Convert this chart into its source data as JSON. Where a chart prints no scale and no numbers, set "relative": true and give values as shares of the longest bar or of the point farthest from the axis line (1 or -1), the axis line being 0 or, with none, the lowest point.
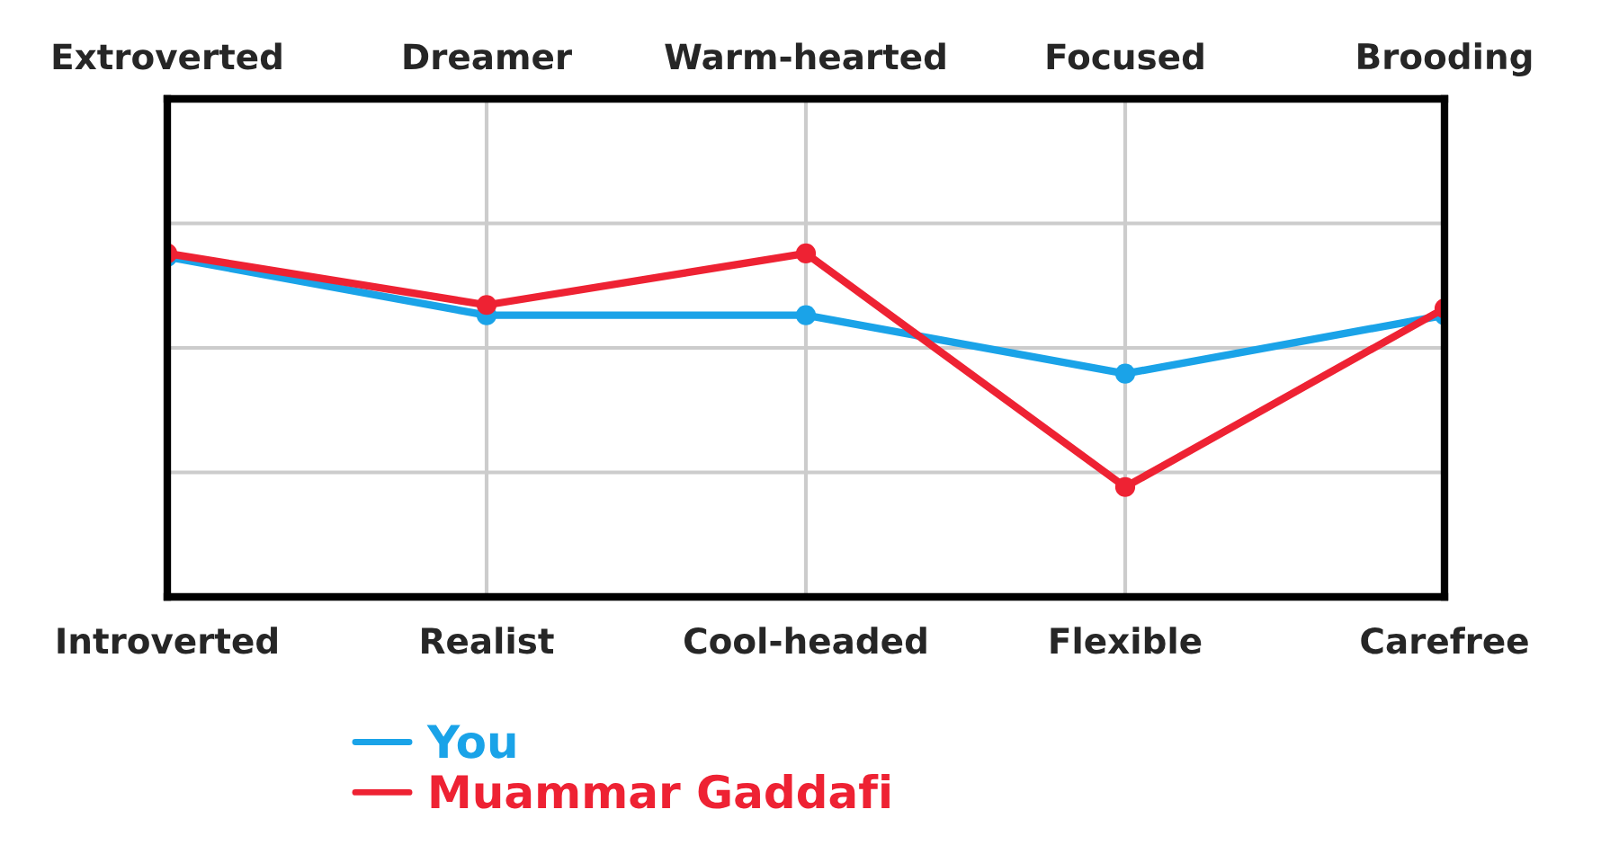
{
  "chart_data": {
    "type": "line",
    "relative": true,
    "categories": [
      "Introverted",
      "Realist",
      "Cool-headed",
      "Flexible",
      "Carefree"
    ],
    "annotations": [
      "Extroverted",
      "Dreamer",
      "Warm-hearted",
      "Focused",
      "Brooding"
    ],
    "series": [
      {
        "name": "You",
        "color": "#1aa3e8",
        "values": [
          0.99,
          0.82,
          0.82,
          0.65,
          0.82
        ]
      },
      {
        "name": "Muammar Gaddafi",
        "color": "#ee2233",
        "values": [
          1,
          0.85,
          1,
          0.32,
          0.84
        ]
      }
    ],
    "grid": true,
    "legend": "bottom left",
    "marker": "circle",
    "line_style": "solid"
  }
}
